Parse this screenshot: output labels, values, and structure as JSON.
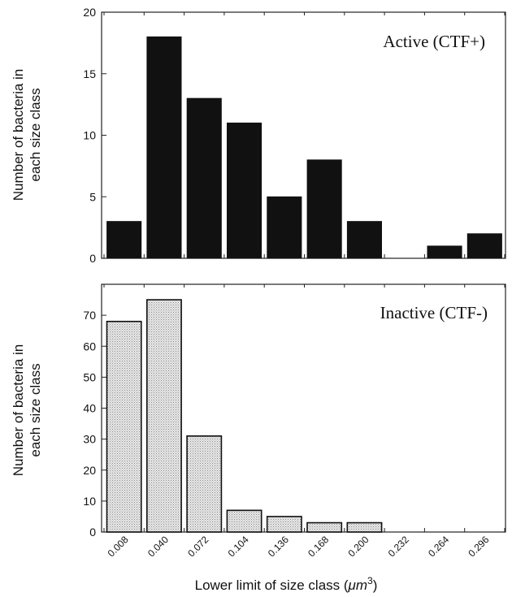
{
  "chart_data": [
    {
      "type": "bar",
      "label": "Active (CTF+)",
      "ylabel_lines": [
        "Number of bacteria in",
        "each size class"
      ],
      "ylim": [
        0,
        20
      ],
      "yticks": [
        0,
        5,
        10,
        15,
        20
      ],
      "categories": [
        "0.008",
        "0.040",
        "0.072",
        "0.104",
        "0.136",
        "0.168",
        "0.200",
        "0.232",
        "0.264",
        "0.296"
      ],
      "values": [
        3,
        18,
        13,
        11,
        5,
        8,
        3,
        0,
        1,
        2
      ],
      "bar_color": "#111111",
      "grid": false
    },
    {
      "type": "bar",
      "label": "Inactive (CTF-)",
      "ylabel_lines": [
        "Number of bacteria in",
        "each size class"
      ],
      "ylim": [
        0,
        80
      ],
      "yticks": [
        0,
        10,
        20,
        30,
        40,
        50,
        60,
        70
      ],
      "categories": [
        "0.008",
        "0.040",
        "0.072",
        "0.104",
        "0.136",
        "0.168",
        "0.200",
        "0.232",
        "0.264",
        "0.296"
      ],
      "values": [
        68,
        75,
        31,
        7,
        5,
        3,
        3,
        0,
        0,
        0
      ],
      "bar_color": "#dcdcdc",
      "grid": false
    }
  ],
  "xlabel_text": "Lower limit of size class (",
  "xlabel_mu": "μm",
  "xlabel_exp": "3",
  "xlabel_close": ")"
}
